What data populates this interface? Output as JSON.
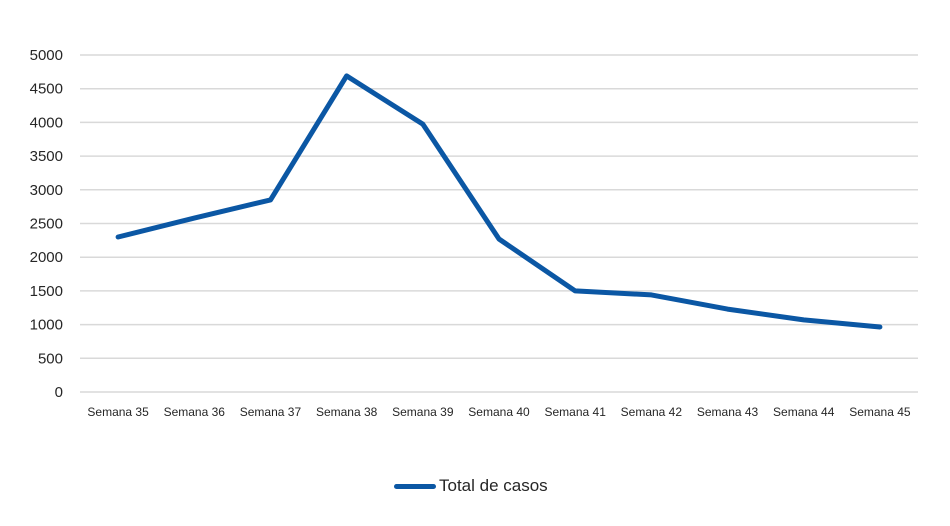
{
  "chart_data": {
    "type": "line",
    "title": "",
    "xlabel": "",
    "ylabel": "",
    "categories": [
      "Semana 35",
      "Semana 36",
      "Semana 37",
      "Semana 38",
      "Semana 39",
      "Semana 40",
      "Semana 41",
      "Semana 42",
      "Semana 43",
      "Semana 44",
      "Semana 45"
    ],
    "series": [
      {
        "name": "Total de casos",
        "color": "#0b57a4",
        "values": [
          2300,
          2580,
          2850,
          4690,
          3975,
          2270,
          1500,
          1440,
          1230,
          1070,
          965
        ]
      }
    ],
    "ylim": [
      0,
      5000
    ],
    "yticks": [
      0,
      500,
      1000,
      1500,
      2000,
      2500,
      3000,
      3500,
      4000,
      4500,
      5000
    ],
    "grid": true,
    "legend_position": "bottom"
  },
  "legend": {
    "label": "Total de casos"
  }
}
